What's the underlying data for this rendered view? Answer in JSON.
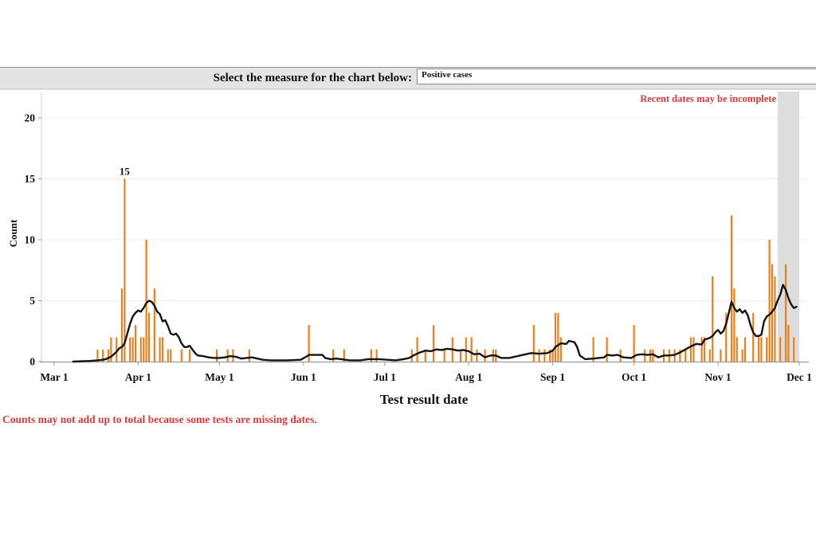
{
  "controls": {
    "label": "Select the measure for the chart below:",
    "measure_select": {
      "value": "Positive cases"
    }
  },
  "notes": {
    "recent": "Recent dates may be incomplete",
    "missing": "Counts may not add up to total because some tests are missing dates."
  },
  "colors": {
    "bar": "#e8811f",
    "trend_line": "#141414",
    "annotation_red": "#d93b3b",
    "recent_band": "#dddddd",
    "grid": "#ededed",
    "axis": "#999999",
    "y_axis_line": "#cccccc",
    "controls_bar_bg": "#e4e4e4"
  },
  "chart_data": {
    "type": "bar",
    "title": "",
    "xlabel": "Test result date",
    "ylabel": "Count",
    "x_tick_labels": [
      "Mar 1",
      "Apr 1",
      "May 1",
      "Jun 1",
      "Jul 1",
      "Aug 1",
      "Sep 1",
      "Oct 1",
      "Nov 1",
      "Dec 1"
    ],
    "y_ticks": [
      0,
      5,
      10,
      15,
      20
    ],
    "ylim": [
      0,
      22
    ],
    "grid": "horizontal",
    "legend": "none",
    "peak_annotation": {
      "text": "15",
      "date": "Mar 27"
    },
    "recent_band": {
      "start": "Nov 23",
      "end": "Dec 1"
    },
    "bars": [
      [
        "Mar 17",
        1
      ],
      [
        "Mar 19",
        1
      ],
      [
        "Mar 21",
        1
      ],
      [
        "Mar 22",
        2
      ],
      [
        "Mar 24",
        2
      ],
      [
        "Mar 26",
        6
      ],
      [
        "Mar 27",
        15
      ],
      [
        "Mar 29",
        2
      ],
      [
        "Mar 30",
        2
      ],
      [
        "Mar 31",
        3
      ],
      [
        "Apr 2",
        2
      ],
      [
        "Apr 3",
        2
      ],
      [
        "Apr 4",
        10
      ],
      [
        "Apr 5",
        4
      ],
      [
        "Apr 7",
        6
      ],
      [
        "Apr 9",
        2
      ],
      [
        "Apr 10",
        2
      ],
      [
        "Apr 12",
        1
      ],
      [
        "Apr 13",
        1
      ],
      [
        "Apr 17",
        1
      ],
      [
        "Apr 20",
        1
      ],
      [
        "Apr 30",
        1
      ],
      [
        "May 4",
        1
      ],
      [
        "May 6",
        1
      ],
      [
        "May 12",
        1
      ],
      [
        "Jun 3",
        3
      ],
      [
        "Jun 12",
        1
      ],
      [
        "Jun 16",
        1
      ],
      [
        "Jun 26",
        1
      ],
      [
        "Jun 28",
        1
      ],
      [
        "Jul 11",
        1
      ],
      [
        "Jul 13",
        2
      ],
      [
        "Jul 16",
        1
      ],
      [
        "Jul 19",
        3
      ],
      [
        "Jul 23",
        1
      ],
      [
        "Jul 26",
        2
      ],
      [
        "Jul 29",
        1
      ],
      [
        "Jul 31",
        2
      ],
      [
        "Aug 2",
        2
      ],
      [
        "Aug 4",
        1
      ],
      [
        "Aug 7",
        1
      ],
      [
        "Aug 10",
        1
      ],
      [
        "Aug 11",
        1
      ],
      [
        "Aug 25",
        3
      ],
      [
        "Aug 27",
        1
      ],
      [
        "Aug 29",
        1
      ],
      [
        "Aug 31",
        1
      ],
      [
        "Sep 1",
        1
      ],
      [
        "Sep 2",
        4
      ],
      [
        "Sep 3",
        4
      ],
      [
        "Sep 4",
        2
      ],
      [
        "Sep 16",
        2
      ],
      [
        "Sep 21",
        2
      ],
      [
        "Sep 26",
        1
      ],
      [
        "Oct 1",
        3
      ],
      [
        "Oct 5",
        1
      ],
      [
        "Oct 7",
        1
      ],
      [
        "Oct 8",
        1
      ],
      [
        "Oct 12",
        1
      ],
      [
        "Oct 14",
        1
      ],
      [
        "Oct 16",
        1
      ],
      [
        "Oct 18",
        1
      ],
      [
        "Oct 20",
        1
      ],
      [
        "Oct 22",
        2
      ],
      [
        "Oct 23",
        2
      ],
      [
        "Oct 26",
        2
      ],
      [
        "Oct 27",
        2
      ],
      [
        "Oct 29",
        1
      ],
      [
        "Oct 30",
        7
      ],
      [
        "Nov 2",
        1
      ],
      [
        "Nov 4",
        4
      ],
      [
        "Nov 6",
        12
      ],
      [
        "Nov 7",
        6
      ],
      [
        "Nov 8",
        2
      ],
      [
        "Nov 10",
        1
      ],
      [
        "Nov 11",
        2
      ],
      [
        "Nov 14",
        4
      ],
      [
        "Nov 16",
        2
      ],
      [
        "Nov 17",
        2
      ],
      [
        "Nov 19",
        2
      ],
      [
        "Nov 20",
        10
      ],
      [
        "Nov 21",
        8
      ],
      [
        "Nov 22",
        7
      ],
      [
        "Nov 24",
        2
      ],
      [
        "Nov 26",
        8
      ],
      [
        "Nov 27",
        3
      ],
      [
        "Nov 29",
        2
      ]
    ],
    "trend_line": [
      [
        "Mar 8",
        0
      ],
      [
        "Mar 14",
        0.05
      ],
      [
        "Mar 17",
        0.1
      ],
      [
        "Mar 19",
        0.15
      ],
      [
        "Mar 20",
        0.2
      ],
      [
        "Mar 22",
        0.4
      ],
      [
        "Mar 23",
        0.6
      ],
      [
        "Mar 24",
        0.8
      ],
      [
        "Mar 25",
        1.1
      ],
      [
        "Mar 26",
        1.2
      ],
      [
        "Mar 27",
        1.5
      ],
      [
        "Mar 28",
        2.3
      ],
      [
        "Mar 29",
        3.1
      ],
      [
        "Mar 30",
        3.7
      ],
      [
        "Mar 31",
        4.0
      ],
      [
        "Apr 1",
        4.2
      ],
      [
        "Apr 2",
        4.1
      ],
      [
        "Apr 3",
        4.4
      ],
      [
        "Apr 4",
        4.8
      ],
      [
        "Apr 5",
        5.0
      ],
      [
        "Apr 6",
        4.9
      ],
      [
        "Apr 7",
        4.6
      ],
      [
        "Apr 8",
        4.1
      ],
      [
        "Apr 9",
        3.9
      ],
      [
        "Apr 10",
        3.3
      ],
      [
        "Apr 11",
        3.4
      ],
      [
        "Apr 12",
        2.9
      ],
      [
        "Apr 13",
        2.3
      ],
      [
        "Apr 14",
        2.2
      ],
      [
        "Apr 15",
        2.3
      ],
      [
        "Apr 16",
        2.0
      ],
      [
        "Apr 17",
        1.5
      ],
      [
        "Apr 18",
        1.2
      ],
      [
        "Apr 19",
        1.2
      ],
      [
        "Apr 20",
        1.3
      ],
      [
        "Apr 21",
        1.0
      ],
      [
        "Apr 22",
        0.7
      ],
      [
        "Apr 23",
        0.5
      ],
      [
        "Apr 25",
        0.45
      ],
      [
        "Apr 27",
        0.35
      ],
      [
        "Apr 29",
        0.3
      ],
      [
        "May 1",
        0.3
      ],
      [
        "May 3",
        0.35
      ],
      [
        "May 5",
        0.45
      ],
      [
        "May 7",
        0.4
      ],
      [
        "May 9",
        0.25
      ],
      [
        "May 11",
        0.3
      ],
      [
        "May 13",
        0.35
      ],
      [
        "May 15",
        0.25
      ],
      [
        "May 17",
        0.15
      ],
      [
        "May 20",
        0.1
      ],
      [
        "May 26",
        0.1
      ],
      [
        "May 31",
        0.15
      ],
      [
        "Jun 2",
        0.4
      ],
      [
        "Jun 3",
        0.55
      ],
      [
        "Jun 8",
        0.55
      ],
      [
        "Jun 9",
        0.3
      ],
      [
        "Jun 11",
        0.2
      ],
      [
        "Jun 13",
        0.25
      ],
      [
        "Jun 15",
        0.2
      ],
      [
        "Jun 18",
        0.1
      ],
      [
        "Jun 22",
        0.1
      ],
      [
        "Jun 25",
        0.2
      ],
      [
        "Jun 29",
        0.2
      ],
      [
        "Jul 2",
        0.15
      ],
      [
        "Jul 5",
        0.1
      ],
      [
        "Jul 8",
        0.2
      ],
      [
        "Jul 10",
        0.3
      ],
      [
        "Jul 12",
        0.55
      ],
      [
        "Jul 14",
        0.75
      ],
      [
        "Jul 16",
        0.9
      ],
      [
        "Jul 18",
        0.85
      ],
      [
        "Jul 20",
        1.0
      ],
      [
        "Jul 22",
        0.95
      ],
      [
        "Jul 24",
        1.05
      ],
      [
        "Jul 26",
        1.0
      ],
      [
        "Jul 28",
        0.9
      ],
      [
        "Jul 30",
        0.95
      ],
      [
        "Aug 1",
        0.85
      ],
      [
        "Aug 3",
        0.6
      ],
      [
        "Aug 5",
        0.65
      ],
      [
        "Aug 7",
        0.35
      ],
      [
        "Aug 9",
        0.5
      ],
      [
        "Aug 11",
        0.5
      ],
      [
        "Aug 13",
        0.3
      ],
      [
        "Aug 16",
        0.3
      ],
      [
        "Aug 19",
        0.45
      ],
      [
        "Aug 22",
        0.6
      ],
      [
        "Aug 24",
        0.7
      ],
      [
        "Aug 27",
        0.65
      ],
      [
        "Aug 30",
        0.7
      ],
      [
        "Sep 1",
        0.9
      ],
      [
        "Sep 2",
        1.2
      ],
      [
        "Sep 3",
        1.35
      ],
      [
        "Sep 4",
        1.5
      ],
      [
        "Sep 6",
        1.45
      ],
      [
        "Sep 7",
        1.7
      ],
      [
        "Sep 9",
        1.6
      ],
      [
        "Sep 10",
        1.2
      ],
      [
        "Sep 11",
        0.5
      ],
      [
        "Sep 13",
        0.2
      ],
      [
        "Sep 16",
        0.25
      ],
      [
        "Sep 18",
        0.3
      ],
      [
        "Sep 20",
        0.35
      ],
      [
        "Sep 21",
        0.55
      ],
      [
        "Sep 23",
        0.5
      ],
      [
        "Sep 25",
        0.55
      ],
      [
        "Sep 27",
        0.35
      ],
      [
        "Sep 30",
        0.3
      ],
      [
        "Oct 2",
        0.55
      ],
      [
        "Oct 4",
        0.6
      ],
      [
        "Oct 6",
        0.55
      ],
      [
        "Oct 8",
        0.6
      ],
      [
        "Oct 10",
        0.35
      ],
      [
        "Oct 12",
        0.5
      ],
      [
        "Oct 14",
        0.5
      ],
      [
        "Oct 16",
        0.55
      ],
      [
        "Oct 18",
        0.75
      ],
      [
        "Oct 20",
        1.0
      ],
      [
        "Oct 22",
        1.25
      ],
      [
        "Oct 24",
        1.45
      ],
      [
        "Oct 26",
        1.4
      ],
      [
        "Oct 27",
        1.8
      ],
      [
        "Oct 29",
        1.95
      ],
      [
        "Oct 30",
        2.1
      ],
      [
        "Oct 31",
        2.4
      ],
      [
        "Nov 1",
        2.6
      ],
      [
        "Nov 2",
        2.3
      ],
      [
        "Nov 3",
        2.5
      ],
      [
        "Nov 4",
        3.1
      ],
      [
        "Nov 5",
        4.0
      ],
      [
        "Nov 6",
        4.9
      ],
      [
        "Nov 7",
        4.4
      ],
      [
        "Nov 8",
        4.1
      ],
      [
        "Nov 9",
        4.3
      ],
      [
        "Nov 10",
        4.0
      ],
      [
        "Nov 11",
        4.2
      ],
      [
        "Nov 12",
        3.8
      ],
      [
        "Nov 13",
        3.0
      ],
      [
        "Nov 14",
        2.4
      ],
      [
        "Nov 15",
        2.1
      ],
      [
        "Nov 16",
        2.1
      ],
      [
        "Nov 17",
        2.2
      ],
      [
        "Nov 18",
        3.3
      ],
      [
        "Nov 19",
        3.7
      ],
      [
        "Nov 20",
        3.85
      ],
      [
        "Nov 21",
        4.1
      ],
      [
        "Nov 22",
        4.4
      ],
      [
        "Nov 23",
        5.0
      ],
      [
        "Nov 24",
        5.5
      ],
      [
        "Nov 25",
        6.3
      ],
      [
        "Nov 26",
        5.9
      ],
      [
        "Nov 27",
        5.2
      ],
      [
        "Nov 28",
        4.7
      ],
      [
        "Nov 29",
        4.4
      ],
      [
        "Nov 30",
        4.5
      ]
    ]
  }
}
